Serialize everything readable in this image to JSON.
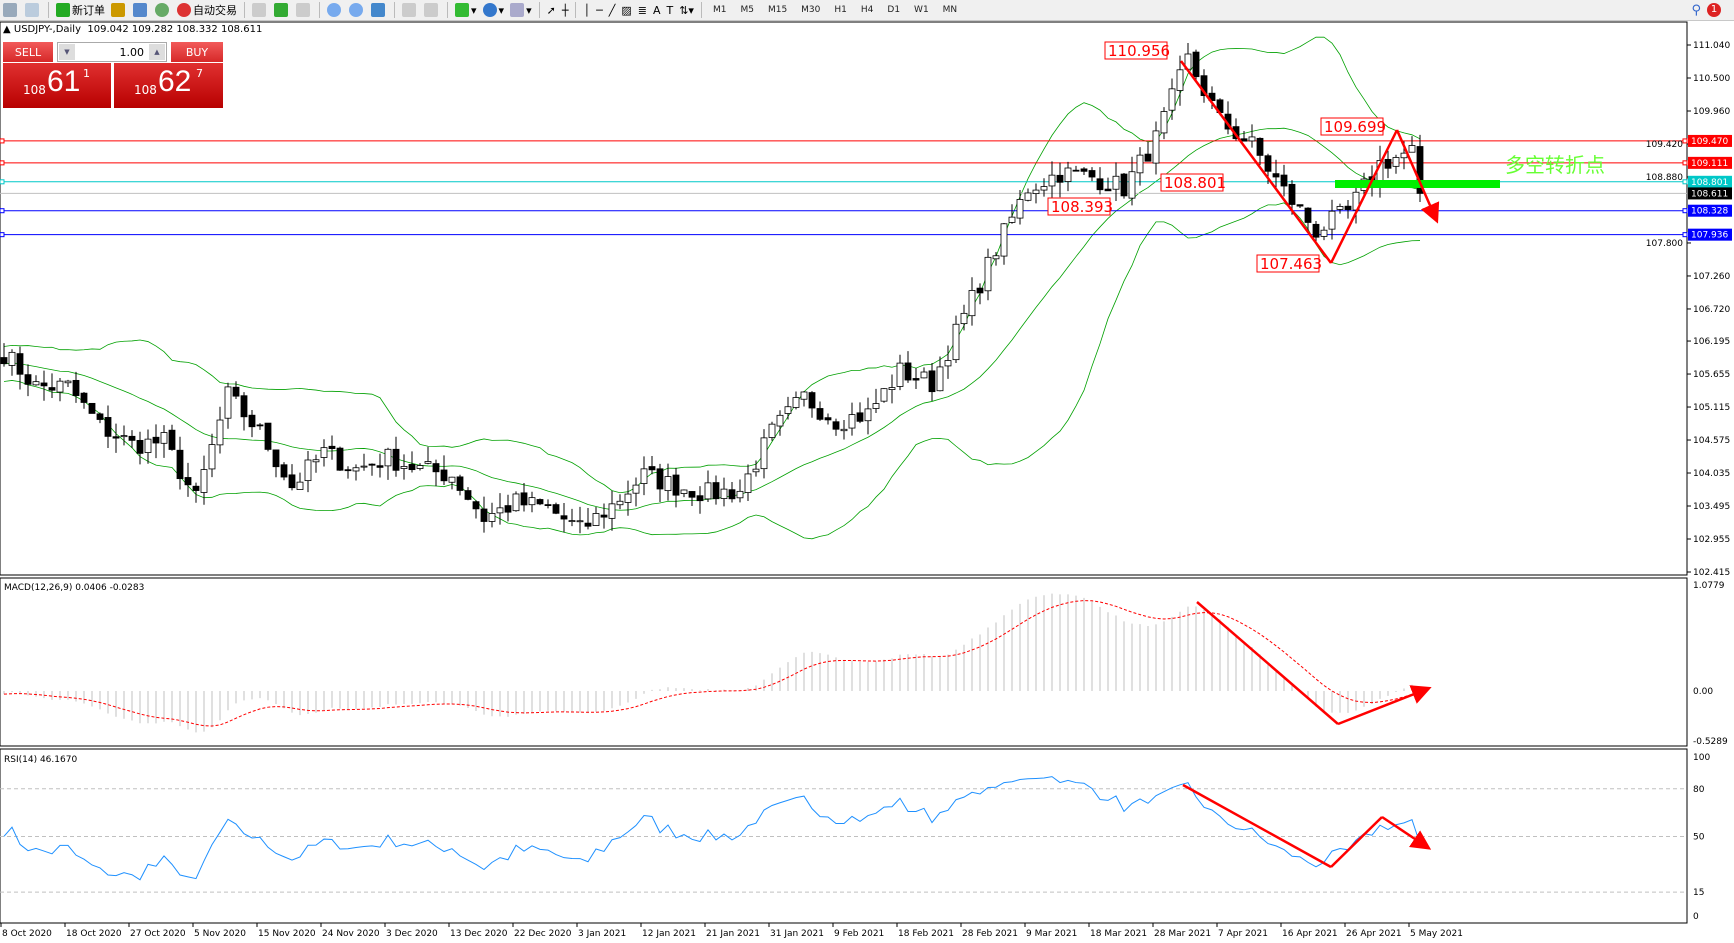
{
  "toolbar": {
    "new_order_label": "新订单",
    "auto_trade_label": "自动交易",
    "timeframes": [
      "M1",
      "M5",
      "M15",
      "M30",
      "H1",
      "H4",
      "D1",
      "W1",
      "MN"
    ],
    "notification_count": "1"
  },
  "chart": {
    "header": "▲ USDJPY-,Daily  109.042 109.282 108.332 108.611",
    "symbol": "USDJPY-",
    "period": "Daily"
  },
  "trade_panel": {
    "sell_label": "SELL",
    "buy_label": "BUY",
    "lot": "1.00",
    "sell_big": "108",
    "sell_main": "61",
    "sell_sup": "1",
    "buy_big": "108",
    "buy_main": "62",
    "buy_sup": "7"
  },
  "chart_data": {
    "type": "candlestick",
    "price_axis_ticks": [
      "111.040",
      "110.500",
      "109.960",
      "109.420",
      "108.880",
      "107.800",
      "107.260",
      "106.720",
      "106.195",
      "105.655",
      "105.115",
      "104.575",
      "104.035",
      "103.495",
      "102.955",
      "102.415"
    ],
    "price_range": [
      102.415,
      111.04
    ],
    "date_ticks": [
      "8 Oct 2020",
      "18 Oct 2020",
      "27 Oct 2020",
      "5 Nov 2020",
      "15 Nov 2020",
      "24 Nov 2020",
      "3 Dec 2020",
      "13 Dec 2020",
      "22 Dec 2020",
      "3 Jan 2021",
      "12 Jan 2021",
      "21 Jan 2021",
      "31 Jan 2021",
      "9 Feb 2021",
      "18 Feb 2021",
      "28 Feb 2021",
      "9 Mar 2021",
      "18 Mar 2021",
      "28 Mar 2021",
      "7 Apr 2021",
      "16 Apr 2021",
      "26 Apr 2021",
      "5 May 2021"
    ],
    "close_every_4_bars": [
      106.0,
      105.45,
      105.45,
      104.8,
      104.5,
      104.55,
      103.6,
      105.3,
      104.7,
      103.82,
      104.37,
      104.1,
      104.28,
      104.1,
      104.0,
      103.3,
      103.55,
      103.46,
      103.1,
      103.5,
      104.0,
      103.82,
      103.7,
      103.75,
      104.7,
      105.27,
      104.9,
      105.0,
      105.7,
      105.5,
      106.6,
      107.7,
      108.7,
      108.95,
      108.88,
      108.7,
      109.5,
      110.8,
      109.8,
      109.4,
      108.65,
      108.0,
      108.3,
      109.1,
      109.3,
      108.611
    ],
    "horizontal_lines": [
      {
        "price": "109.470",
        "color": "#ff0000"
      },
      {
        "price": "109.111",
        "color": "#ff0000"
      },
      {
        "price": "108.801",
        "color": "#00c8c8"
      },
      {
        "price": "108.611",
        "color": "#000000",
        "line": "#c0c0c0"
      },
      {
        "price": "108.328",
        "color": "#0000ff"
      },
      {
        "price": "107.936",
        "color": "#0000ff"
      }
    ],
    "price_labels": [
      "110.956",
      "109.699",
      "108.801",
      "108.393",
      "107.463"
    ],
    "annotation_text": "多空转折点",
    "annotation_color": "#66ff33",
    "bullish_color": "#ffffff",
    "bearish_color": "#000000",
    "bands_color": "#00a000",
    "macd": {
      "label": "MACD(12,26,9) 0.0406 -0.0283",
      "axis_ticks": [
        "1.0779",
        "0.00",
        "-0.5289"
      ],
      "range": [
        -0.5289,
        1.0779
      ],
      "histogram_color": "#c0c0c0",
      "signal_color": "#ff0000"
    },
    "rsi": {
      "label": "RSI(14) 46.1670",
      "axis_ticks": [
        "100",
        "80",
        "50",
        "15",
        "0"
      ],
      "levels": [
        80,
        50,
        15
      ],
      "color": "#1e90ff"
    },
    "arrow_color": "#ff0000"
  }
}
